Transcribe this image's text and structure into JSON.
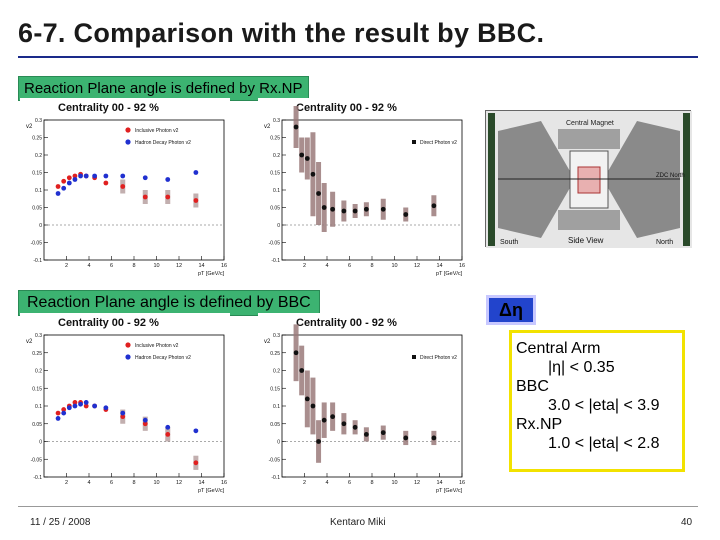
{
  "slide": {
    "title": "6-7. Comparison with the result by BBC.",
    "header_rxnp": "Reaction Plane angle is defined by Rx.NP",
    "header_bbc": "Reaction Plane angle is defined by BBC",
    "deta_label": "Δη",
    "footer_date": "11 / 25 / 2008",
    "footer_author": "Kentaro Miki",
    "footer_page": "40"
  },
  "info": {
    "line1": "Central Arm",
    "line2": "|η| < 0.35",
    "line3": "BBC",
    "line4": "3.0 < |eta| < 3.9",
    "line5": "Rx.NP",
    "line6": "1.0 < |eta| < 2.8"
  },
  "detector": {
    "label_magnet": "Central Magnet",
    "label_side": "Side View",
    "label_south": "South",
    "label_north": "North",
    "label_zdc": "ZDC North"
  },
  "colors": {
    "inclusive": "#e02020",
    "hadron": "#2030d0",
    "direct": "#111111",
    "sys": "#9a7a7a",
    "header_green": "#3cb371",
    "yellow": "#f2e200"
  },
  "chart_data": [
    {
      "type": "scatter",
      "title": "Centrality 00 - 92 %",
      "xlabel": "pT [GeV/c]",
      "ylabel": "v2",
      "xlim": [
        0,
        16
      ],
      "ylim": [
        -0.1,
        0.3
      ],
      "xticks": [
        "2",
        "4",
        "6",
        "8",
        "10",
        "12",
        "14",
        "16"
      ],
      "yticks": [
        "-0.1",
        "-0.05",
        "0",
        "0.05",
        "0.1",
        "0.15",
        "0.2",
        "0.25",
        "0.3"
      ],
      "legend": [
        "Inclusive Photon v2",
        "Hadron Decay Photon v2"
      ],
      "series": [
        {
          "name": "Inclusive Photon v2",
          "x": [
            1.25,
            1.75,
            2.25,
            2.75,
            3.25,
            3.75,
            4.5,
            5.5,
            7,
            9,
            11,
            13.5
          ],
          "y": [
            0.11,
            0.125,
            0.135,
            0.14,
            0.145,
            0.14,
            0.135,
            0.12,
            0.11,
            0.08,
            0.08,
            0.07
          ]
        },
        {
          "name": "Hadron Decay Photon v2",
          "x": [
            1.25,
            1.75,
            2.25,
            2.75,
            3.25,
            3.75,
            4.5,
            5.5,
            7,
            9,
            11,
            13.5
          ],
          "y": [
            0.09,
            0.105,
            0.12,
            0.13,
            0.14,
            0.14,
            0.14,
            0.14,
            0.14,
            0.135,
            0.13,
            0.15
          ]
        }
      ]
    },
    {
      "type": "scatter",
      "title": "Centrality 00 - 92 %",
      "xlabel": "pT [GeV/c]",
      "ylabel": "v2",
      "xlim": [
        0,
        16
      ],
      "ylim": [
        -0.1,
        0.3
      ],
      "xticks": [
        "2",
        "4",
        "6",
        "8",
        "10",
        "12",
        "14",
        "16"
      ],
      "yticks": [
        "-0.1",
        "-0.05",
        "0",
        "0.05",
        "0.1",
        "0.15",
        "0.2",
        "0.25",
        "0.3"
      ],
      "legend": [
        "Direct Photon v2"
      ],
      "series": [
        {
          "name": "Direct Photon v2",
          "x": [
            1.25,
            1.75,
            2.25,
            2.75,
            3.25,
            3.75,
            4.5,
            5.5,
            6.5,
            7.5,
            9,
            11,
            13.5
          ],
          "y": [
            0.28,
            0.2,
            0.19,
            0.145,
            0.09,
            0.05,
            0.045,
            0.04,
            0.04,
            0.045,
            0.045,
            0.03,
            0.055
          ],
          "err": [
            0.06,
            0.05,
            0.06,
            0.12,
            0.09,
            0.07,
            0.05,
            0.03,
            0.02,
            0.02,
            0.03,
            0.02,
            0.03
          ]
        }
      ]
    },
    {
      "type": "scatter",
      "title": "Centrality 00 - 92 %",
      "xlabel": "pT [GeV/c]",
      "ylabel": "v2",
      "xlim": [
        0,
        16
      ],
      "ylim": [
        -0.1,
        0.3
      ],
      "xticks": [
        "2",
        "4",
        "6",
        "8",
        "10",
        "12",
        "14",
        "16"
      ],
      "yticks": [
        "-0.1",
        "-0.05",
        "0",
        "0.05",
        "0.1",
        "0.15",
        "0.2",
        "0.25",
        "0.3"
      ],
      "legend": [
        "Inclusive Photon v2",
        "Hadron Decay Photon v2"
      ],
      "series": [
        {
          "name": "Inclusive Photon v2",
          "x": [
            1.25,
            1.75,
            2.25,
            2.75,
            3.25,
            3.75,
            4.5,
            5.5,
            7,
            9,
            11,
            13.5
          ],
          "y": [
            0.08,
            0.09,
            0.1,
            0.11,
            0.11,
            0.1,
            0.1,
            0.09,
            0.07,
            0.05,
            0.02,
            -0.06
          ]
        },
        {
          "name": "Hadron Decay Photon v2",
          "x": [
            1.25,
            1.75,
            2.25,
            2.75,
            3.25,
            3.75,
            4.5,
            5.5,
            7,
            9,
            11,
            13.5
          ],
          "y": [
            0.065,
            0.08,
            0.095,
            0.1,
            0.105,
            0.11,
            0.1,
            0.095,
            0.08,
            0.06,
            0.04,
            0.03
          ]
        }
      ]
    },
    {
      "type": "scatter",
      "title": "Centrality 00 - 92 %",
      "xlabel": "pT [GeV/c]",
      "ylabel": "v2",
      "xlim": [
        0,
        16
      ],
      "ylim": [
        -0.1,
        0.3
      ],
      "xticks": [
        "2",
        "4",
        "6",
        "8",
        "10",
        "12",
        "14",
        "16"
      ],
      "yticks": [
        "-0.1",
        "-0.05",
        "0",
        "0.05",
        "0.1",
        "0.15",
        "0.2",
        "0.25",
        "0.3"
      ],
      "legend": [
        "Direct Photon v2"
      ],
      "series": [
        {
          "name": "Direct Photon v2",
          "x": [
            1.25,
            1.75,
            2.25,
            2.75,
            3.25,
            3.75,
            4.5,
            5.5,
            6.5,
            7.5,
            9,
            11,
            13.5
          ],
          "y": [
            0.25,
            0.2,
            0.12,
            0.1,
            0.0,
            0.06,
            0.07,
            0.05,
            0.04,
            0.02,
            0.025,
            0.01,
            0.01
          ],
          "err": [
            0.08,
            0.07,
            0.08,
            0.08,
            0.06,
            0.05,
            0.04,
            0.03,
            0.02,
            0.02,
            0.02,
            0.02,
            0.02
          ]
        }
      ]
    }
  ]
}
